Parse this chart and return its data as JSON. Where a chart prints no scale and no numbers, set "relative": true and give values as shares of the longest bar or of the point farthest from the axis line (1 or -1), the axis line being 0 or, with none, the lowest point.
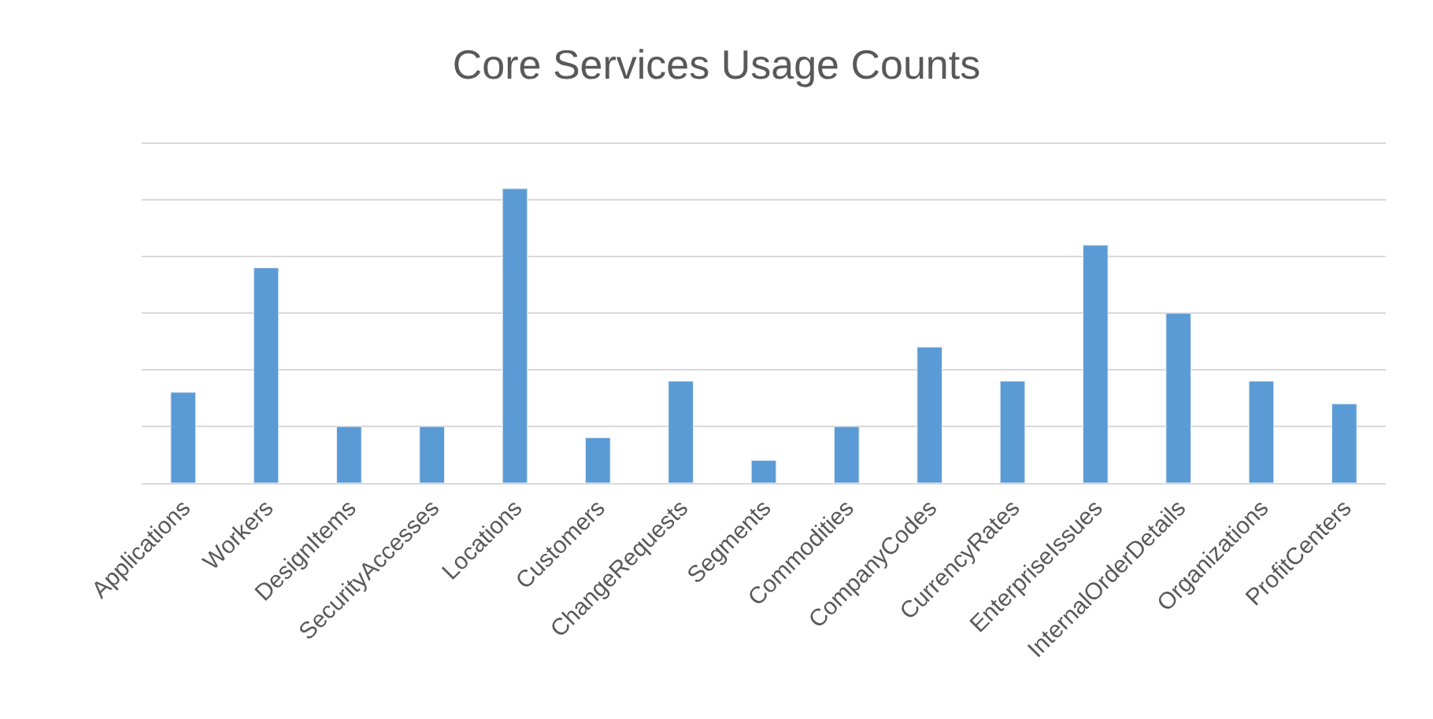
{
  "chart_data": {
    "type": "bar",
    "title": "Core Services Usage Counts",
    "categories": [
      "Applications",
      "Workers",
      "DesignItems",
      "SecurityAccesses",
      "Locations",
      "Customers",
      "ChangeRequests",
      "Segments",
      "Commodities",
      "CompanyCodes",
      "CurrencyRates",
      "EnterpriseIssues",
      "InternalOrderDetails",
      "Organizations",
      "ProfitCenters"
    ],
    "values": [
      0.308,
      0.731,
      0.192,
      0.192,
      1,
      0.154,
      0.346,
      0.077,
      0.192,
      0.462,
      0.346,
      0.808,
      0.577,
      0.346,
      0.269
    ],
    "color": "#5b9bd5",
    "relative": true,
    "grid": "y",
    "legend": false
  }
}
